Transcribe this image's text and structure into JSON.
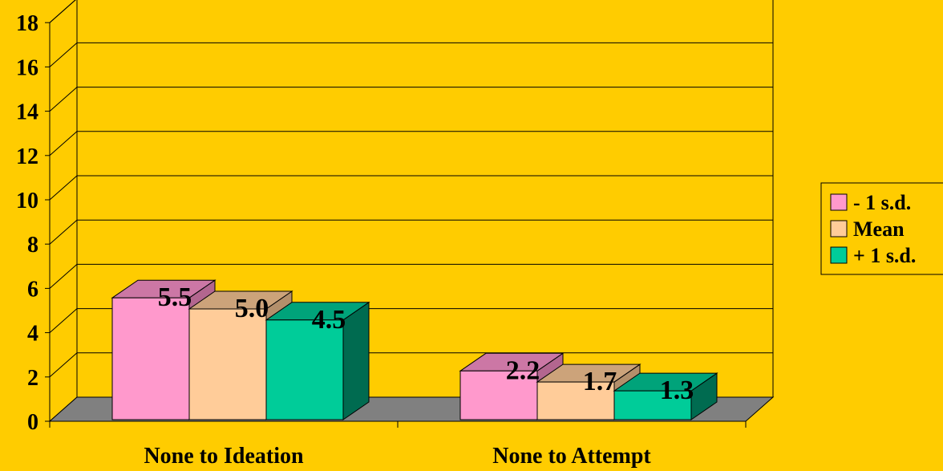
{
  "chart_data": {
    "type": "bar",
    "categories": [
      "None to Ideation",
      "None to Attempt"
    ],
    "series": [
      {
        "name": "- 1 s.d.",
        "values": [
          5.5,
          2.2
        ],
        "labels": [
          "5.5",
          "2.2"
        ],
        "color": "#FF99CC",
        "top_color": "#CC77A5",
        "side_color": "#B3668F"
      },
      {
        "name": "Mean",
        "values": [
          5.0,
          1.7
        ],
        "labels": [
          "5.0",
          "1.7"
        ],
        "color": "#FFCC99",
        "top_color": "#CCA37A",
        "side_color": "#B38F6B"
      },
      {
        "name": "+ 1 s.d.",
        "values": [
          4.5,
          1.3
        ],
        "labels": [
          "4.5",
          "1.3"
        ],
        "color": "#00CC99",
        "top_color": "#00A37A",
        "side_color": "#006B50"
      }
    ],
    "ylim": [
      0,
      18
    ],
    "yticks": [
      "0",
      "2",
      "4",
      "6",
      "8",
      "10",
      "12",
      "14",
      "16",
      "18"
    ],
    "gridlines": true,
    "legend_position": "right",
    "projection": "3d"
  }
}
